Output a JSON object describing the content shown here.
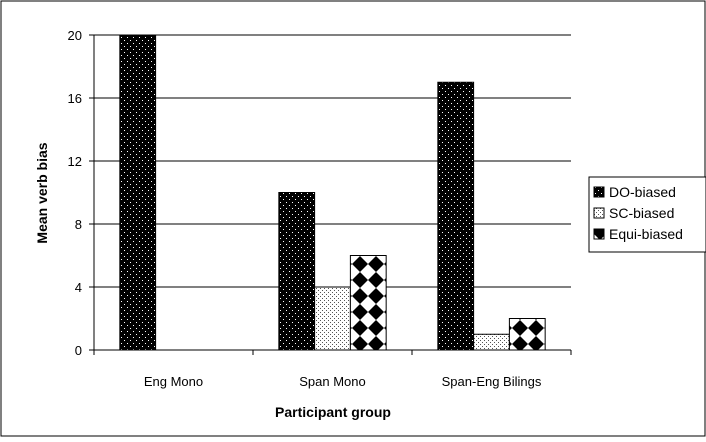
{
  "chart_data": {
    "type": "bar",
    "title": "",
    "xlabel": "Participant group",
    "ylabel": "Mean verb bias",
    "categories": [
      "Eng Mono",
      "Span Mono",
      "Span-Eng Bilings"
    ],
    "ylim": [
      0,
      20
    ],
    "yticks": [
      "0",
      "4",
      "8",
      "12",
      "16",
      "20"
    ],
    "grid": true,
    "legend_position": "right",
    "series": [
      {
        "name": "DO-biased",
        "values": [
          20,
          10,
          17
        ],
        "pattern": "dark-dots"
      },
      {
        "name": "SC-biased",
        "values": [
          0,
          4,
          1
        ],
        "pattern": "light-dots"
      },
      {
        "name": "Equi-biased",
        "values": [
          0,
          6,
          2
        ],
        "pattern": "checker"
      }
    ]
  }
}
